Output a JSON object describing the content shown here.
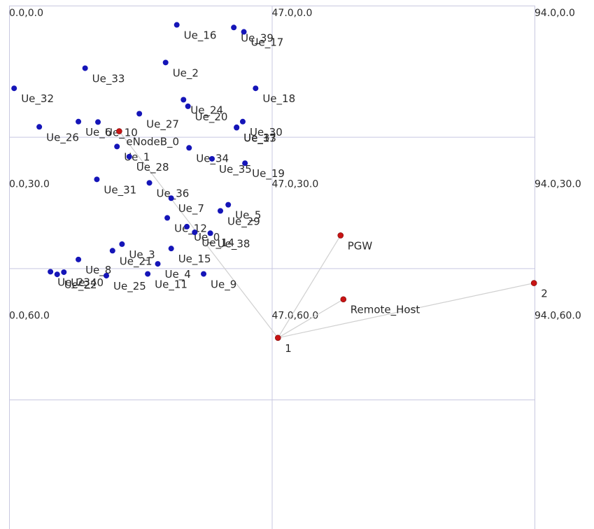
{
  "topology": {
    "grid": {
      "x_ticks": [
        0,
        47,
        94
      ],
      "y_ticks": [
        0,
        30,
        60
      ]
    },
    "coordinate_labels": [
      {
        "text": "0.0,0.0",
        "x": 0,
        "y": 0
      },
      {
        "text": "47.0,0.0",
        "x": 47,
        "y": 0
      },
      {
        "text": "94.0,0.0",
        "x": 94,
        "y": 0
      },
      {
        "text": "0.0,30.0",
        "x": 0,
        "y": 30
      },
      {
        "text": "47.0,30.0",
        "x": 47,
        "y": 30
      },
      {
        "text": "94.0,30.0",
        "x": 94,
        "y": 30
      },
      {
        "text": "0.0,60.0",
        "x": 0,
        "y": 60
      },
      {
        "text": "47.0,60.0",
        "x": 47,
        "y": 60
      },
      {
        "text": "94.0,60.0",
        "x": 94,
        "y": 60
      }
    ],
    "colors": {
      "ue": "#1515b8",
      "infra": "#c81414",
      "link": "#d0d0d0",
      "grid": "#c8c8e0"
    },
    "infra_nodes": [
      {
        "id": "enb",
        "label": "eNodeB_0",
        "x": 19.7,
        "y": 28.7
      },
      {
        "id": "pgw",
        "label": "PGW",
        "x": 59.3,
        "y": 52.5
      },
      {
        "id": "rh",
        "label": "Remote_Host",
        "x": 59.8,
        "y": 67.1
      },
      {
        "id": "n1",
        "label": "1",
        "x": 48.1,
        "y": 75.9
      },
      {
        "id": "n2",
        "label": "2",
        "x": 93.9,
        "y": 63.4
      }
    ],
    "links": [
      [
        "enb",
        "n1"
      ],
      [
        "pgw",
        "n1"
      ],
      [
        "rh",
        "n1"
      ],
      [
        "n1",
        "n2"
      ]
    ],
    "ue_nodes": [
      {
        "label": "Ue_16",
        "x": 30.0,
        "y": 4.4
      },
      {
        "label": "Ue_39",
        "x": 40.2,
        "y": 5.0
      },
      {
        "label": "Ue_17",
        "x": 42.0,
        "y": 6.0
      },
      {
        "label": "Ue_2",
        "x": 28.0,
        "y": 13.0
      },
      {
        "label": "Ue_33",
        "x": 13.6,
        "y": 14.3
      },
      {
        "label": "Ue_32",
        "x": 0.9,
        "y": 18.9
      },
      {
        "label": "Ue_24",
        "x": 31.2,
        "y": 21.5
      },
      {
        "label": "Ue_20",
        "x": 32.0,
        "y": 23.0
      },
      {
        "label": "Ue_37",
        "x": 40.7,
        "y": 27.8
      },
      {
        "label": "Ue_18",
        "x": 44.1,
        "y": 18.9
      },
      {
        "label": "Ue_26",
        "x": 5.4,
        "y": 27.7
      },
      {
        "label": "Ue_6",
        "x": 12.4,
        "y": 26.5
      },
      {
        "label": "Ue_10",
        "x": 15.9,
        "y": 26.6
      },
      {
        "label": "Ue_27",
        "x": 23.3,
        "y": 24.7
      },
      {
        "label": "Ue_30",
        "x": 41.8,
        "y": 26.5
      },
      {
        "label": "Ue_13",
        "x": 40.7,
        "y": 27.9
      },
      {
        "label": "Ue_1",
        "x": 19.3,
        "y": 32.2
      },
      {
        "label": "Ue_34",
        "x": 32.2,
        "y": 32.5
      },
      {
        "label": "Ue_28",
        "x": 21.5,
        "y": 34.5
      },
      {
        "label": "Ue_35",
        "x": 36.3,
        "y": 35.0
      },
      {
        "label": "Ue_19",
        "x": 42.2,
        "y": 36.0
      },
      {
        "label": "Ue_31",
        "x": 15.7,
        "y": 39.7
      },
      {
        "label": "Ue_36",
        "x": 25.1,
        "y": 40.5
      },
      {
        "label": "Ue_7",
        "x": 29.0,
        "y": 44.0
      },
      {
        "label": "Ue_5",
        "x": 39.2,
        "y": 45.5
      },
      {
        "label": "Ue_12",
        "x": 28.3,
        "y": 48.5
      },
      {
        "label": "Ue_29",
        "x": 37.8,
        "y": 46.9
      },
      {
        "label": "Ue_0",
        "x": 31.8,
        "y": 50.5
      },
      {
        "label": "Ue_14",
        "x": 33.2,
        "y": 51.8
      },
      {
        "label": "Ue_38",
        "x": 36.0,
        "y": 52.0
      },
      {
        "label": "Ue_15",
        "x": 29.0,
        "y": 55.5
      },
      {
        "label": "Ue_3",
        "x": 20.2,
        "y": 54.5
      },
      {
        "label": "Ue_21",
        "x": 18.5,
        "y": 56.0
      },
      {
        "label": "Ue_4",
        "x": 26.6,
        "y": 59.0
      },
      {
        "label": "Ue_8",
        "x": 12.4,
        "y": 58.0
      },
      {
        "label": "Ue_25",
        "x": 17.4,
        "y": 61.7
      },
      {
        "label": "Ue_11",
        "x": 24.8,
        "y": 61.3
      },
      {
        "label": "Ue_9",
        "x": 34.8,
        "y": 61.3
      },
      {
        "label": "Ue_23",
        "x": 7.4,
        "y": 60.8
      },
      {
        "label": "Ue_22",
        "x": 8.6,
        "y": 61.4
      },
      {
        "label": "Ue_40",
        "x": 9.8,
        "y": 60.9
      }
    ]
  }
}
